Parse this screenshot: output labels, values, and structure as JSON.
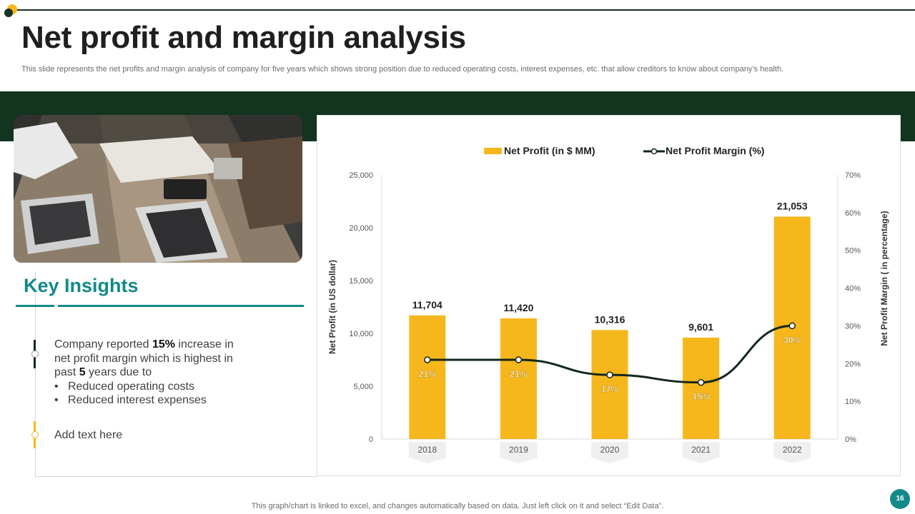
{
  "slide": {
    "title": "Net profit and margin analysis",
    "subtitle": "This slide represents the net profits and margin analysis of company for five years which shows strong position due to reduced operating costs, interest expenses, etc. that allow creditors to know about company’s health.",
    "footer_note": "This graph/chart is linked to excel,  and changes automatically based on data. Just left click on it and select “Edit Data”.",
    "page_number": "16"
  },
  "insights": {
    "heading": "Key Insights",
    "point1": {
      "pre": "Company reported ",
      "bold1": "15%",
      "mid": " increase in net profit margin which is highest in past ",
      "bold2": "5",
      "post": " years due to",
      "bullets": [
        "Reduced operating costs",
        "Reduced interest expenses"
      ]
    },
    "point2": "Add text here"
  },
  "colors": {
    "bar": "#f5b71b",
    "line": "#13271c",
    "brand_dark": "#13341f",
    "accent_teal": "#138a8a"
  },
  "chart_data": {
    "type": "bar",
    "title": "",
    "categories": [
      "2018",
      "2019",
      "2020",
      "2021",
      "2022"
    ],
    "series": [
      {
        "name": "Net Profit (in $ MM)",
        "type": "bar",
        "axis": "left",
        "values": [
          11704,
          11420,
          10316,
          9601,
          21053
        ],
        "labels": [
          "11,704",
          "11,420",
          "10,316",
          "9,601",
          "21,053"
        ]
      },
      {
        "name": "Net Profit Margin (%)",
        "type": "line",
        "axis": "right",
        "values": [
          21,
          21,
          17,
          15,
          30
        ],
        "labels": [
          "21%",
          "21%",
          "17%",
          "15%",
          "30%"
        ]
      }
    ],
    "ylabel": "Net Profit (in US dollar)",
    "y2label": "Net Profit Margin ( in percentage)",
    "ylim": [
      0,
      25000
    ],
    "y2lim": [
      0,
      70
    ],
    "yticks": [
      0,
      5000,
      10000,
      15000,
      20000,
      25000
    ],
    "ytick_labels": [
      "0",
      "5,000",
      "10,000",
      "15,000",
      "20,000",
      "25,000"
    ],
    "y2ticks": [
      0,
      10,
      20,
      30,
      40,
      50,
      60,
      70
    ],
    "y2tick_labels": [
      "0%",
      "10%",
      "20%",
      "30%",
      "40%",
      "50%",
      "60%",
      "70%"
    ],
    "legend": "top-center",
    "grid": false
  }
}
